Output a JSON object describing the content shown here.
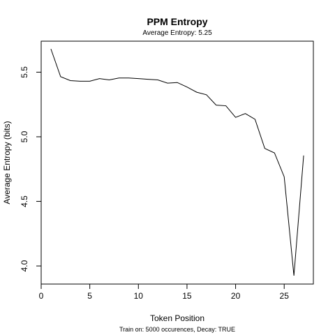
{
  "chart_data": {
    "type": "line",
    "title": "PPM Entropy",
    "subtitle": "Average Entropy: 5.25",
    "xlabel": "Token Position",
    "ylabel": "Average Entropy (bits)",
    "footer": "Train on: 5000 occurences, Decay: TRUE",
    "xlim": [
      0,
      28
    ],
    "ylim": [
      3.86,
      5.74
    ],
    "x_ticks": [
      0,
      5,
      10,
      15,
      20,
      25
    ],
    "x_tick_labels": [
      "0",
      "5",
      "10",
      "15",
      "20",
      "25"
    ],
    "y_ticks": [
      4.0,
      4.5,
      5.0,
      5.5
    ],
    "y_tick_labels": [
      "4.0",
      "4.5",
      "5.0",
      "5.5"
    ],
    "grid": false,
    "series": [
      {
        "x": [
          1,
          2,
          3,
          4,
          5,
          6,
          7,
          8,
          9,
          10,
          11,
          12,
          13,
          14,
          15,
          16,
          17,
          18,
          19,
          20,
          21,
          22,
          23,
          24,
          25,
          26,
          27
        ],
        "y": [
          5.68,
          5.465,
          5.435,
          5.43,
          5.43,
          5.45,
          5.44,
          5.455,
          5.455,
          5.45,
          5.445,
          5.44,
          5.415,
          5.42,
          5.385,
          5.345,
          5.325,
          5.245,
          5.24,
          5.15,
          5.18,
          5.135,
          4.91,
          4.875,
          4.69,
          3.925,
          4.855
        ]
      }
    ]
  }
}
